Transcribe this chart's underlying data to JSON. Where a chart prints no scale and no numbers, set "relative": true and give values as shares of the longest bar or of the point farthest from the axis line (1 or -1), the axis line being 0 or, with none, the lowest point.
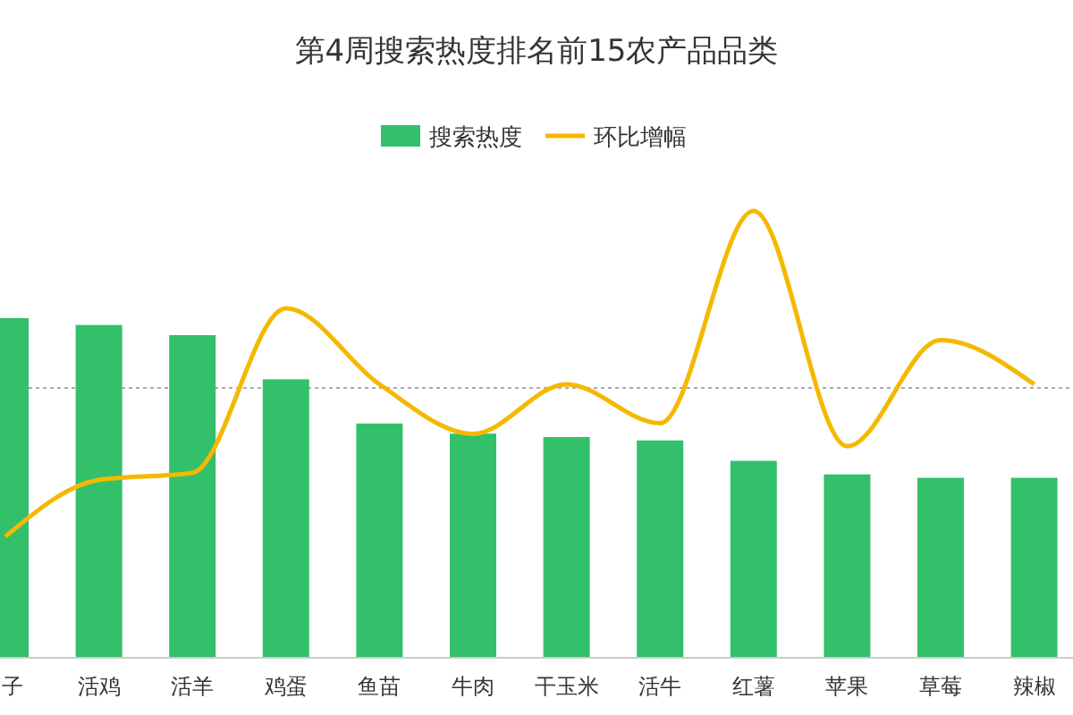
{
  "chart_data": {
    "type": "bar",
    "title": "第4周搜索热度排名前15农产品品类",
    "relative": true,
    "legend": "top",
    "ref_lines": [
      {
        "axis": "y2",
        "value": 0,
        "color": "#aaaaaa",
        "line_style": "dotted"
      }
    ],
    "categories": [
      "子",
      "活鸡",
      "活羊",
      "鸡蛋",
      "鱼苗",
      "牛肉",
      "干玉米",
      "活牛",
      "红薯",
      "苹果",
      "草莓",
      "辣椒"
    ],
    "series": [
      {
        "name": "搜索热度",
        "color": "#33c06b",
        "values": [
          1,
          0.98,
          0.95,
          0.82,
          0.69,
          0.66,
          0.65,
          0.64,
          0.58,
          0.54,
          0.53,
          0.53
        ]
      },
      {
        "name": "环比增幅",
        "type": "line",
        "axis": "y2",
        "color": "#f5b800",
        "values": [
          -0.84,
          -0.52,
          -0.48,
          0.45,
          0.02,
          -0.26,
          0.02,
          -0.2,
          1,
          -0.33,
          0.27,
          0.02
        ]
      }
    ]
  }
}
